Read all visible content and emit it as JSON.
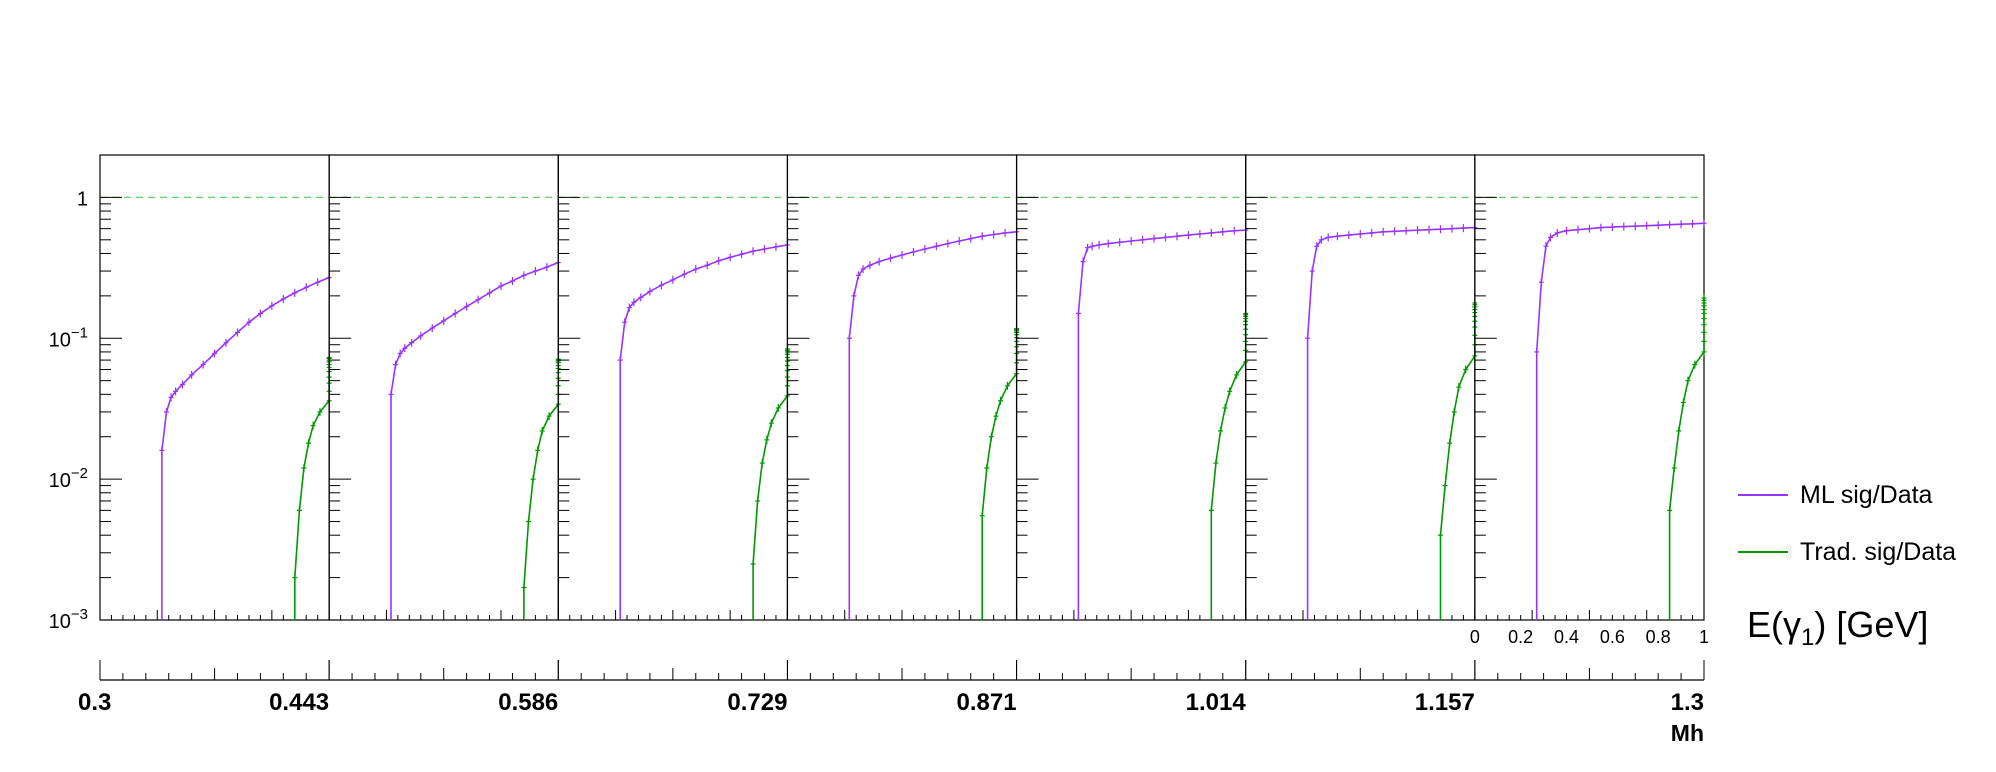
{
  "chart_data": {
    "type": "line",
    "y_scale": "log",
    "ylim": [
      0.001,
      2
    ],
    "y_ticks": [
      {
        "value": 1,
        "base": "1",
        "exp": ""
      },
      {
        "value": 0.1,
        "base": "10",
        "exp": "−1"
      },
      {
        "value": 0.01,
        "base": "10",
        "exp": "−2"
      },
      {
        "value": 0.001,
        "base": "10",
        "exp": "−3"
      }
    ],
    "reference_line": {
      "y": 1,
      "style": "dashed",
      "color": "#66cc66"
    },
    "sub_axis": {
      "label_base": "E(γ",
      "label_sub": "1",
      "label_tail": ") [GeV]",
      "xlim": [
        0,
        1
      ],
      "ticks": [
        "0",
        "0.2",
        "0.4",
        "0.6",
        "0.8",
        "1"
      ]
    },
    "mh_axis": {
      "label": "Mh",
      "ticks": [
        "0.3",
        "0.443",
        "0.586",
        "0.729",
        "0.871",
        "1.014",
        "1.157",
        "1.3"
      ]
    },
    "panels": [
      {
        "mh_range": [
          "0.3",
          "0.443"
        ],
        "ml_x": [
          0.27,
          0.29,
          0.31,
          0.33,
          0.36,
          0.4,
          0.45,
          0.5,
          0.55,
          0.6,
          0.65,
          0.7,
          0.75,
          0.8,
          0.85,
          0.9,
          0.95,
          1.0
        ],
        "ml_y": [
          0.016,
          0.03,
          0.038,
          0.042,
          0.047,
          0.055,
          0.065,
          0.078,
          0.093,
          0.11,
          0.13,
          0.15,
          0.17,
          0.19,
          0.21,
          0.23,
          0.25,
          0.27
        ],
        "trad_x": [
          0.85,
          0.87,
          0.89,
          0.91,
          0.93,
          0.96,
          1.0,
          1.05,
          1.1,
          1.15,
          1.2,
          1.25,
          1.3,
          1.35,
          1.4,
          1.45,
          1.5
        ],
        "trad_y": [
          0.002,
          0.006,
          0.012,
          0.018,
          0.024,
          0.03,
          0.036,
          0.042,
          0.048,
          0.053,
          0.058,
          0.062,
          0.065,
          0.068,
          0.07,
          0.072,
          0.073
        ]
      },
      {
        "mh_range": [
          "0.443",
          "0.586"
        ],
        "ml_x": [
          0.27,
          0.29,
          0.31,
          0.33,
          0.36,
          0.4,
          0.45,
          0.5,
          0.55,
          0.6,
          0.65,
          0.7,
          0.75,
          0.8,
          0.85,
          0.9,
          0.95,
          1.0
        ],
        "ml_y": [
          0.04,
          0.065,
          0.078,
          0.085,
          0.093,
          0.104,
          0.118,
          0.133,
          0.15,
          0.168,
          0.188,
          0.21,
          0.235,
          0.255,
          0.28,
          0.3,
          0.32,
          0.345
        ],
        "trad_x": [
          0.85,
          0.87,
          0.89,
          0.91,
          0.93,
          0.96,
          1.0,
          1.05,
          1.1,
          1.15,
          1.2,
          1.25,
          1.3,
          1.35,
          1.4,
          1.45,
          1.5
        ],
        "trad_y": [
          0.0017,
          0.005,
          0.01,
          0.016,
          0.022,
          0.028,
          0.034,
          0.04,
          0.046,
          0.052,
          0.057,
          0.061,
          0.064,
          0.067,
          0.069,
          0.07,
          0.071
        ]
      },
      {
        "mh_range": [
          "0.586",
          "0.729"
        ],
        "ml_x": [
          0.27,
          0.29,
          0.31,
          0.33,
          0.36,
          0.4,
          0.45,
          0.5,
          0.55,
          0.6,
          0.65,
          0.7,
          0.75,
          0.8,
          0.85,
          0.9,
          0.95,
          1.0
        ],
        "ml_y": [
          0.07,
          0.13,
          0.165,
          0.18,
          0.195,
          0.215,
          0.238,
          0.26,
          0.285,
          0.31,
          0.33,
          0.355,
          0.375,
          0.395,
          0.415,
          0.43,
          0.445,
          0.46
        ],
        "trad_x": [
          0.85,
          0.87,
          0.89,
          0.91,
          0.93,
          0.96,
          1.0,
          1.05,
          1.1,
          1.15,
          1.2,
          1.25,
          1.3,
          1.35,
          1.4,
          1.45,
          1.5
        ],
        "trad_y": [
          0.0025,
          0.007,
          0.013,
          0.019,
          0.025,
          0.032,
          0.039,
          0.046,
          0.053,
          0.059,
          0.064,
          0.069,
          0.073,
          0.077,
          0.08,
          0.082,
          0.084
        ]
      },
      {
        "mh_range": [
          "0.729",
          "0.871"
        ],
        "ml_x": [
          0.27,
          0.29,
          0.31,
          0.33,
          0.36,
          0.4,
          0.45,
          0.5,
          0.55,
          0.6,
          0.65,
          0.7,
          0.75,
          0.8,
          0.85,
          0.9,
          0.95,
          1.0
        ],
        "ml_y": [
          0.1,
          0.2,
          0.28,
          0.31,
          0.33,
          0.35,
          0.37,
          0.39,
          0.41,
          0.43,
          0.45,
          0.47,
          0.49,
          0.51,
          0.53,
          0.545,
          0.56,
          0.57
        ],
        "trad_x": [
          0.85,
          0.87,
          0.89,
          0.91,
          0.93,
          0.96,
          1.0,
          1.05,
          1.1,
          1.15,
          1.2,
          1.25,
          1.3,
          1.35,
          1.4,
          1.45,
          1.5
        ],
        "trad_y": [
          0.0055,
          0.012,
          0.02,
          0.028,
          0.036,
          0.046,
          0.056,
          0.067,
          0.078,
          0.087,
          0.095,
          0.101,
          0.106,
          0.11,
          0.113,
          0.115,
          0.117
        ]
      },
      {
        "mh_range": [
          "0.871",
          "1.014"
        ],
        "ml_x": [
          0.27,
          0.29,
          0.31,
          0.33,
          0.36,
          0.4,
          0.45,
          0.5,
          0.55,
          0.6,
          0.65,
          0.7,
          0.75,
          0.8,
          0.85,
          0.9,
          0.95,
          1.0
        ],
        "ml_y": [
          0.15,
          0.35,
          0.44,
          0.45,
          0.46,
          0.47,
          0.48,
          0.49,
          0.5,
          0.51,
          0.52,
          0.53,
          0.54,
          0.55,
          0.56,
          0.57,
          0.58,
          0.585
        ],
        "trad_x": [
          0.85,
          0.87,
          0.89,
          0.91,
          0.93,
          0.96,
          1.0,
          1.05,
          1.1,
          1.15,
          1.2,
          1.25,
          1.3,
          1.35,
          1.4,
          1.45,
          1.5
        ],
        "trad_y": [
          0.006,
          0.013,
          0.022,
          0.032,
          0.042,
          0.055,
          0.068,
          0.082,
          0.095,
          0.106,
          0.116,
          0.125,
          0.132,
          0.138,
          0.143,
          0.147,
          0.15
        ]
      },
      {
        "mh_range": [
          "1.014",
          "1.157"
        ],
        "ml_x": [
          0.27,
          0.29,
          0.31,
          0.33,
          0.36,
          0.4,
          0.45,
          0.5,
          0.55,
          0.6,
          0.65,
          0.7,
          0.75,
          0.8,
          0.85,
          0.9,
          0.95,
          1.0
        ],
        "ml_y": [
          0.1,
          0.3,
          0.45,
          0.5,
          0.52,
          0.53,
          0.54,
          0.55,
          0.56,
          0.57,
          0.575,
          0.58,
          0.585,
          0.59,
          0.595,
          0.6,
          0.605,
          0.61
        ],
        "trad_x": [
          0.85,
          0.87,
          0.89,
          0.91,
          0.93,
          0.96,
          1.0,
          1.05,
          1.1,
          1.15,
          1.2,
          1.25,
          1.3,
          1.35,
          1.4,
          1.45,
          1.5
        ],
        "trad_y": [
          0.004,
          0.009,
          0.018,
          0.03,
          0.045,
          0.06,
          0.075,
          0.09,
          0.105,
          0.12,
          0.132,
          0.143,
          0.152,
          0.16,
          0.167,
          0.173,
          0.178
        ]
      },
      {
        "mh_range": [
          "1.157",
          "1.3"
        ],
        "ml_x": [
          0.27,
          0.29,
          0.31,
          0.33,
          0.36,
          0.4,
          0.45,
          0.5,
          0.55,
          0.6,
          0.65,
          0.7,
          0.75,
          0.8,
          0.85,
          0.9,
          0.95,
          1.0
        ],
        "ml_y": [
          0.08,
          0.25,
          0.45,
          0.52,
          0.56,
          0.58,
          0.59,
          0.6,
          0.61,
          0.615,
          0.62,
          0.625,
          0.63,
          0.635,
          0.64,
          0.645,
          0.65,
          0.655
        ],
        "trad_x": [
          0.85,
          0.87,
          0.89,
          0.91,
          0.93,
          0.96,
          1.0,
          1.05,
          1.1,
          1.15,
          1.2,
          1.25,
          1.3,
          1.35,
          1.4,
          1.45,
          1.5
        ],
        "trad_y": [
          0.006,
          0.012,
          0.022,
          0.035,
          0.05,
          0.065,
          0.08,
          0.095,
          0.11,
          0.125,
          0.138,
          0.15,
          0.16,
          0.17,
          0.178,
          0.186,
          0.193
        ]
      }
    ],
    "series": [
      {
        "name": "ML sig/Data",
        "key": "ml",
        "color": "#9933ff"
      },
      {
        "name": "Trad. sig/Data",
        "key": "trad",
        "color": "#009900"
      }
    ],
    "legend_position": "right"
  }
}
